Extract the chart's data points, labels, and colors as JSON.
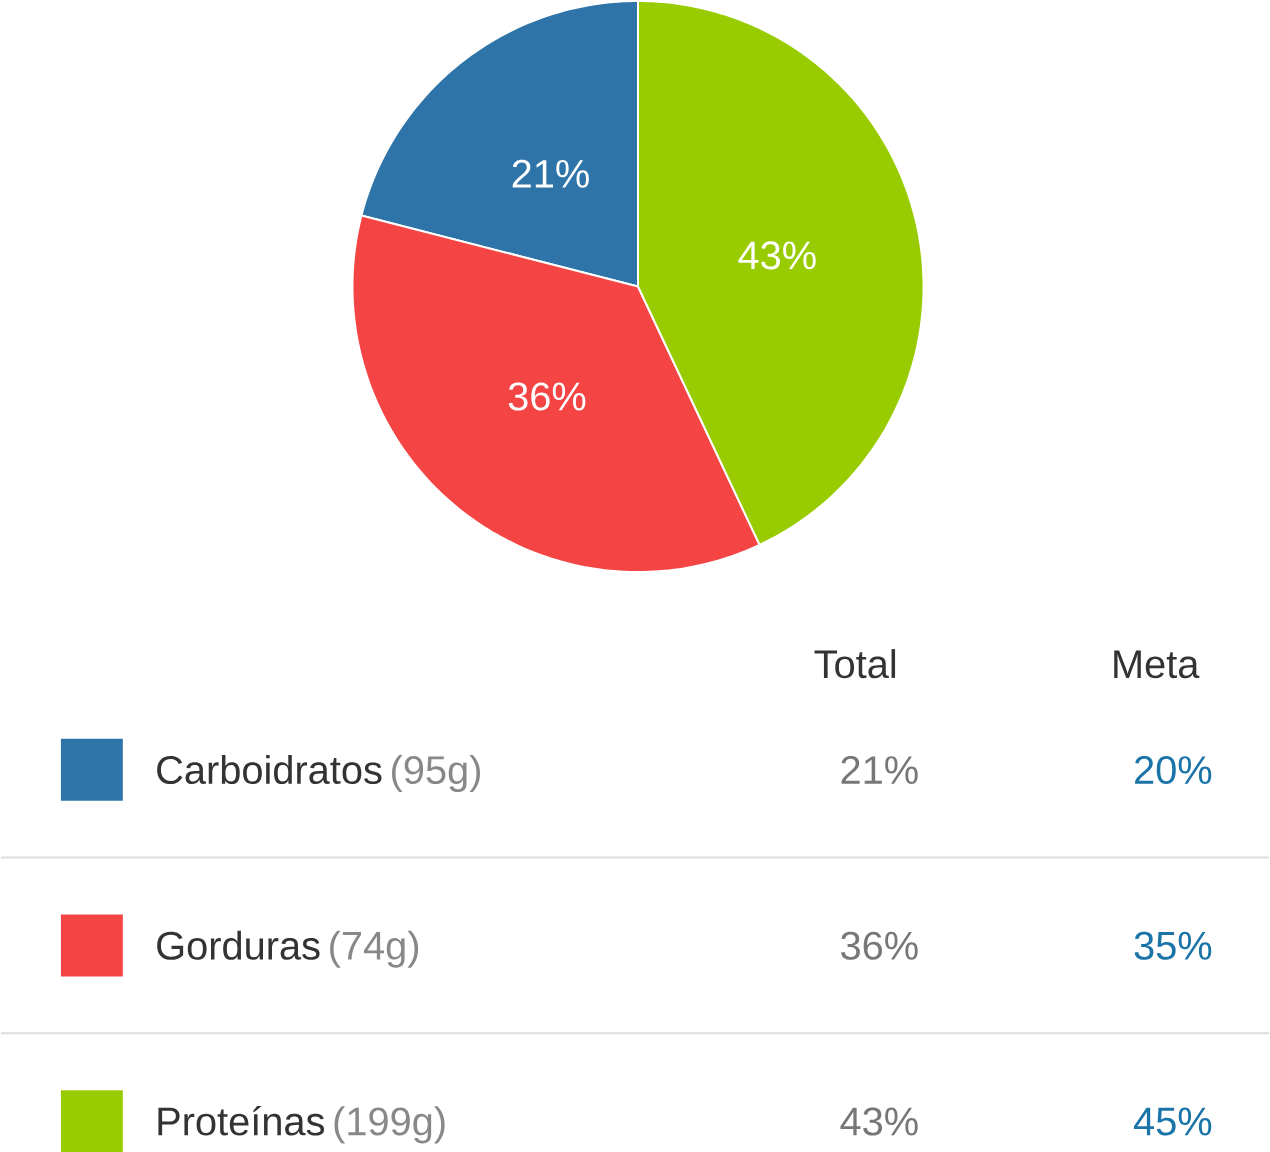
{
  "chart_data": {
    "type": "pie",
    "categories": [
      "Carboidratos",
      "Gorduras",
      "Proteínas"
    ],
    "values": [
      21,
      36,
      43
    ],
    "colors": [
      "#2e74a8",
      "#f44444",
      "#99cc00"
    ],
    "value_labels": [
      "21%",
      "36%",
      "43%"
    ],
    "legend": "bottom",
    "annotations": [
      "Total",
      "Meta",
      "(95g)",
      "20%",
      "(74g)",
      "35%",
      "(199g)",
      "45%"
    ]
  }
}
